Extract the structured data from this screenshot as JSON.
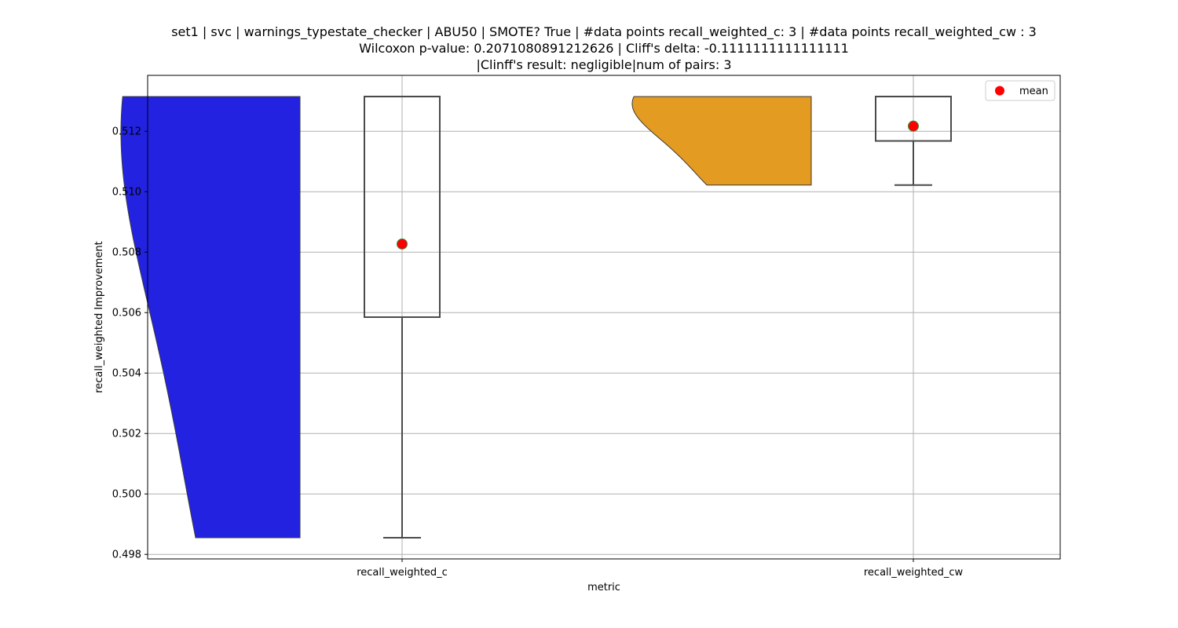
{
  "chart_data": {
    "type": "violin-box",
    "title_lines": [
      "set1 | svc | warnings_typestate_checker | ABU50 | SMOTE? True | #data points recall_weighted_c: 3 | #data points recall_weighted_cw : 3",
      "Wilcoxon p-value: 0.2071080891212626 | Cliff's delta: -0.1111111111111111",
      "|Clinff's result: negligible|num of pairs: 3"
    ],
    "xlabel": "metric",
    "ylabel": "recall_weighted Improvement",
    "categories": [
      "recall_weighted_c",
      "recall_weighted_cw"
    ],
    "ylim": [
      0.49785,
      0.51385
    ],
    "yticks": [
      0.498,
      0.5,
      0.502,
      0.504,
      0.506,
      0.508,
      0.51,
      0.512
    ],
    "ytick_labels": [
      "0.498",
      "0.500",
      "0.502",
      "0.504",
      "0.506",
      "0.508",
      "0.510",
      "0.512"
    ],
    "grid": true,
    "legend": {
      "placement": "top-right",
      "entries": [
        {
          "label": "mean",
          "color": "#ff0000"
        }
      ]
    },
    "series": [
      {
        "category": "recall_weighted_c",
        "violin_color": "#2222e0",
        "violin_side": "left",
        "min": 0.49855,
        "q1": 0.50585,
        "median": 0.51315,
        "q3": 0.51315,
        "max": 0.51315,
        "mean": 0.50827
      },
      {
        "category": "recall_weighted_cw",
        "violin_color": "#e39b22",
        "violin_side": "left",
        "min": 0.51022,
        "q1": 0.51168,
        "median": 0.51315,
        "q3": 0.51315,
        "max": 0.51315,
        "mean": 0.51217
      }
    ]
  }
}
